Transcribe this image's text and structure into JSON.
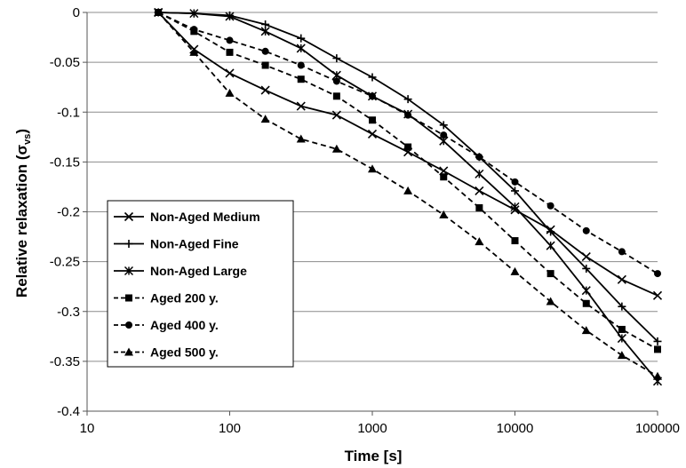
{
  "chart_data": {
    "type": "line",
    "xlabel": "Time [s]",
    "ylabel_main": "Relative relaxation (σ",
    "ylabel_sub": "vs",
    "ylabel_close": ")",
    "x_scale": "log",
    "xlim": [
      10,
      100000
    ],
    "ylim": [
      -0.4,
      0
    ],
    "x_ticks": [
      10,
      100,
      1000,
      10000,
      100000
    ],
    "x_tick_labels": [
      "10",
      "100",
      "1000",
      "10000",
      "100000"
    ],
    "y_ticks": [
      0,
      -0.05,
      -0.1,
      -0.15,
      -0.2,
      -0.25,
      -0.3,
      -0.35,
      -0.4
    ],
    "y_tick_labels": [
      "0",
      "-0.05",
      "-0.1",
      "-0.15",
      "-0.2",
      "-0.25",
      "-0.3",
      "-0.35",
      "-0.4"
    ],
    "grid": "horizontal",
    "legend_position": "bottom-left",
    "x": [
      31.6,
      56.2,
      100,
      177.8,
      316.2,
      562.3,
      1000,
      1778,
      3162,
      5623,
      10000,
      17783,
      31623,
      56234,
      100000
    ],
    "series": [
      {
        "name": "Non-Aged Medium",
        "marker": "x",
        "dash": "solid",
        "values": [
          0,
          -0.037,
          -0.061,
          -0.078,
          -0.094,
          -0.103,
          -0.122,
          -0.14,
          -0.159,
          -0.179,
          -0.198,
          -0.218,
          -0.245,
          -0.268,
          -0.284
        ]
      },
      {
        "name": "Non-Aged Fine",
        "marker": "plus",
        "dash": "solid",
        "values": [
          0,
          -0.001,
          -0.003,
          -0.012,
          -0.026,
          -0.046,
          -0.065,
          -0.087,
          -0.113,
          -0.145,
          -0.179,
          -0.22,
          -0.257,
          -0.295,
          -0.33
        ]
      },
      {
        "name": "Non-Aged Large",
        "marker": "star",
        "dash": "solid",
        "values": [
          0,
          -0.001,
          -0.004,
          -0.019,
          -0.036,
          -0.063,
          -0.084,
          -0.102,
          -0.129,
          -0.162,
          -0.195,
          -0.234,
          -0.279,
          -0.327,
          -0.37
        ]
      },
      {
        "name": "Aged 200 y.",
        "marker": "square",
        "dash": "dashed",
        "values": [
          0,
          -0.019,
          -0.04,
          -0.053,
          -0.067,
          -0.084,
          -0.108,
          -0.135,
          -0.165,
          -0.196,
          -0.229,
          -0.262,
          -0.292,
          -0.318,
          -0.338
        ]
      },
      {
        "name": "Aged 400 y.",
        "marker": "circle",
        "dash": "dashed",
        "values": [
          0,
          -0.017,
          -0.028,
          -0.039,
          -0.053,
          -0.069,
          -0.084,
          -0.103,
          -0.123,
          -0.145,
          -0.17,
          -0.194,
          -0.219,
          -0.24,
          -0.262
        ]
      },
      {
        "name": "Aged 500 y.",
        "marker": "triangle",
        "dash": "dashed",
        "values": [
          0,
          -0.04,
          -0.081,
          -0.107,
          -0.127,
          -0.137,
          -0.157,
          -0.179,
          -0.203,
          -0.23,
          -0.26,
          -0.29,
          -0.319,
          -0.344,
          -0.365
        ]
      }
    ]
  }
}
